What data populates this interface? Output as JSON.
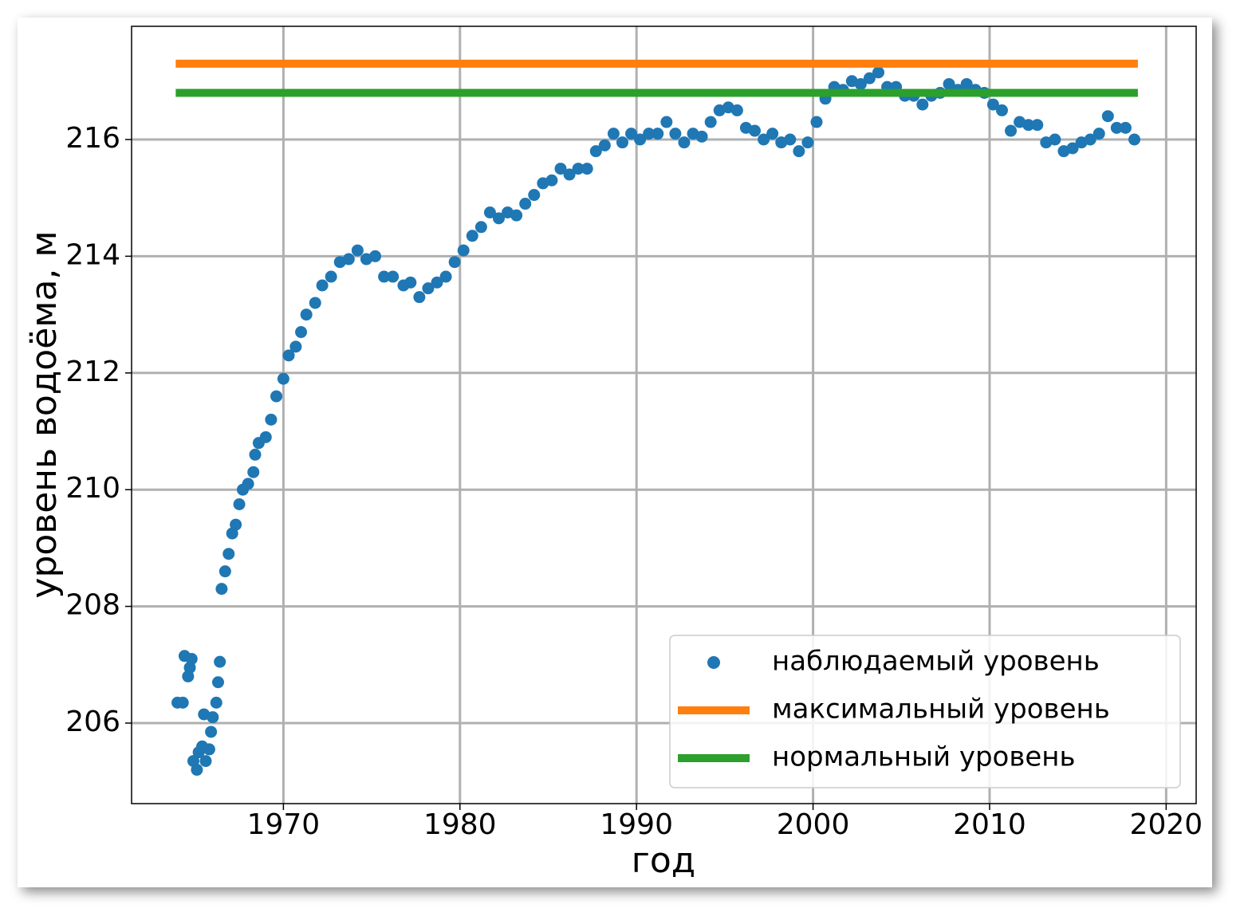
{
  "chart_data": {
    "type": "scatter",
    "xlabel": "год",
    "ylabel": "уровень водоёма, м",
    "xlim": [
      1961.4,
      2021.7
    ],
    "ylim": [
      204.62,
      217.94
    ],
    "xticks": [
      1970,
      1980,
      1990,
      2000,
      2010,
      2020
    ],
    "yticks": [
      206,
      208,
      210,
      212,
      214,
      216
    ],
    "grid": true,
    "legend": "lower right",
    "series": [
      {
        "name": "наблюдаемый уровень",
        "type": "scatter",
        "color": "#1f77b4",
        "x": [
          1964.0,
          1964.3,
          1964.4,
          1964.6,
          1964.7,
          1964.8,
          1964.9,
          1965.1,
          1965.2,
          1965.4,
          1965.5,
          1965.6,
          1965.8,
          1965.9,
          1966.0,
          1966.2,
          1966.3,
          1966.4,
          1966.5,
          1966.7,
          1966.9,
          1967.1,
          1967.3,
          1967.5,
          1967.7,
          1968.0,
          1968.3,
          1968.4,
          1968.6,
          1969.0,
          1969.3,
          1969.6,
          1970.0,
          1970.3,
          1970.7,
          1971.0,
          1971.3,
          1971.8,
          1972.2,
          1972.7,
          1973.2,
          1973.7,
          1974.2,
          1974.7,
          1975.2,
          1975.7,
          1976.2,
          1976.8,
          1977.2,
          1977.7,
          1978.2,
          1978.7,
          1979.2,
          1979.7,
          1980.2,
          1980.7,
          1981.2,
          1981.7,
          1982.2,
          1982.7,
          1983.2,
          1983.7,
          1984.2,
          1984.7,
          1985.2,
          1985.7,
          1986.2,
          1986.7,
          1987.2,
          1987.7,
          1988.2,
          1988.7,
          1989.2,
          1989.7,
          1990.2,
          1990.7,
          1991.2,
          1991.7,
          1992.2,
          1992.7,
          1993.2,
          1993.7,
          1994.2,
          1994.7,
          1995.2,
          1995.7,
          1996.2,
          1996.7,
          1997.2,
          1997.7,
          1998.2,
          1998.7,
          1999.2,
          1999.7,
          2000.2,
          2000.7,
          2001.2,
          2001.7,
          2002.2,
          2002.7,
          2003.2,
          2003.7,
          2004.2,
          2004.7,
          2005.2,
          2005.7,
          2006.2,
          2006.7,
          2007.2,
          2007.7,
          2008.2,
          2008.7,
          2009.2,
          2009.7,
          2010.2,
          2010.7,
          2011.2,
          2011.7,
          2012.2,
          2012.7,
          2013.2,
          2013.7,
          2014.2,
          2014.7,
          2015.2,
          2015.7,
          2016.2,
          2016.7,
          2017.2,
          2017.7,
          2018.2
        ],
        "values": [
          206.35,
          206.35,
          207.15,
          206.8,
          206.95,
          207.1,
          205.35,
          205.2,
          205.5,
          205.6,
          206.15,
          205.35,
          205.55,
          205.85,
          206.1,
          206.35,
          206.7,
          207.05,
          208.3,
          208.6,
          208.9,
          209.25,
          209.4,
          209.75,
          210.0,
          210.1,
          210.3,
          210.6,
          210.8,
          210.9,
          211.2,
          211.6,
          211.9,
          212.3,
          212.45,
          212.7,
          213.0,
          213.2,
          213.5,
          213.65,
          213.9,
          213.95,
          214.1,
          213.95,
          214.0,
          213.65,
          213.65,
          213.5,
          213.55,
          213.3,
          213.45,
          213.55,
          213.65,
          213.9,
          214.1,
          214.35,
          214.5,
          214.75,
          214.65,
          214.75,
          214.7,
          214.9,
          215.05,
          215.25,
          215.3,
          215.5,
          215.4,
          215.5,
          215.5,
          215.8,
          215.9,
          216.1,
          215.95,
          216.1,
          216.0,
          216.1,
          216.1,
          216.3,
          216.1,
          215.95,
          216.1,
          216.05,
          216.3,
          216.5,
          216.55,
          216.5,
          216.2,
          216.15,
          216.0,
          216.1,
          215.95,
          216.0,
          215.8,
          215.95,
          216.3,
          216.7,
          216.9,
          216.85,
          217.0,
          216.95,
          217.05,
          217.15,
          216.9,
          216.9,
          216.75,
          216.75,
          216.6,
          216.75,
          216.8,
          216.95,
          216.85,
          216.95,
          216.85,
          216.8,
          216.6,
          216.5,
          216.15,
          216.3,
          216.25,
          216.25,
          215.95,
          216.0,
          215.8,
          215.85,
          215.95,
          216.0,
          216.1,
          216.4,
          216.2,
          216.2,
          216.0
        ]
      },
      {
        "name": "максимальный уровень",
        "type": "line",
        "color": "#ff7f0e",
        "x": [
          1963.9,
          2018.4
        ],
        "values": [
          217.3,
          217.3
        ]
      },
      {
        "name": "нормальный уровень",
        "type": "line",
        "color": "#2ca02c",
        "x": [
          1963.9,
          2018.4
        ],
        "values": [
          216.8,
          216.8
        ]
      }
    ]
  }
}
